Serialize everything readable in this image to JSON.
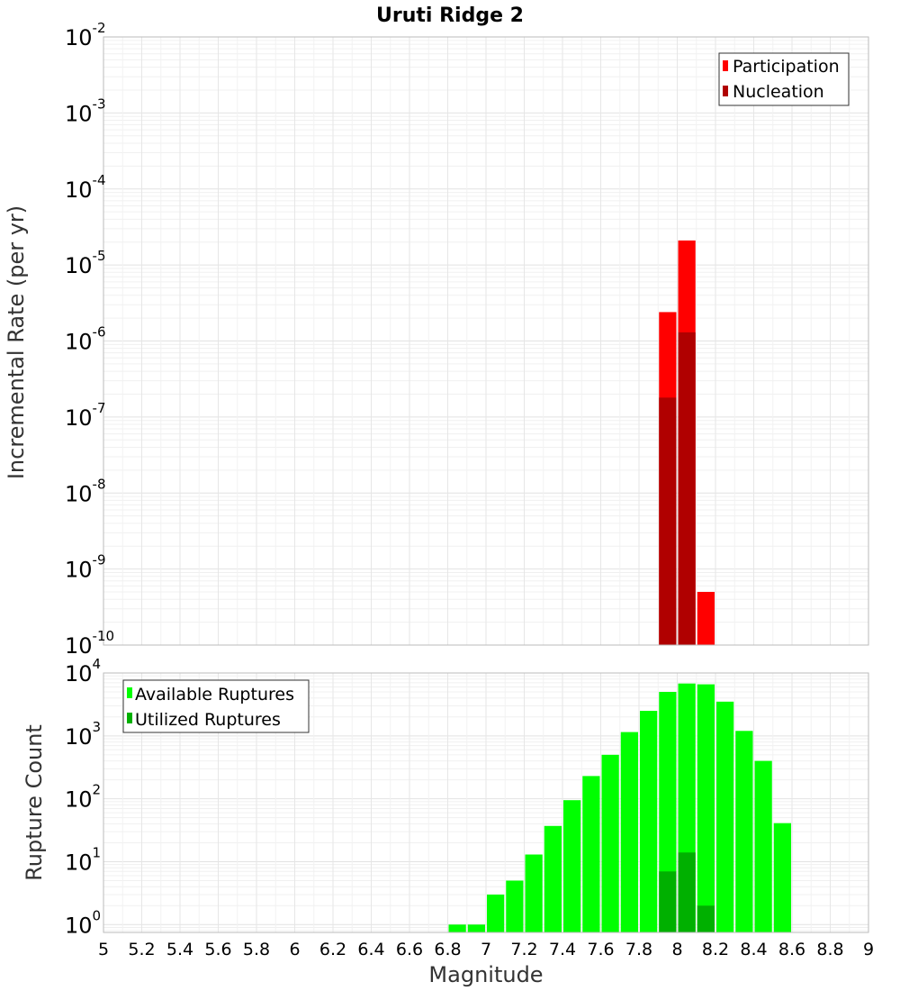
{
  "chart_data": [
    {
      "type": "bar",
      "title": "Uruti Ridge 2",
      "xlabel": "",
      "ylabel": "Incremental Rate (per yr)",
      "yscale": "log",
      "ylim_exp": [
        -10,
        -2
      ],
      "xlim": [
        5,
        9
      ],
      "bin_width": 0.1,
      "grid": true,
      "legend_position": "top-right",
      "y_ticks": [
        {
          "base": "10",
          "exp": "-2"
        },
        {
          "base": "10",
          "exp": "-3"
        },
        {
          "base": "10",
          "exp": "-4"
        },
        {
          "base": "10",
          "exp": "-5"
        },
        {
          "base": "10",
          "exp": "-6"
        },
        {
          "base": "10",
          "exp": "-7"
        },
        {
          "base": "10",
          "exp": "-8"
        },
        {
          "base": "10",
          "exp": "-9"
        },
        {
          "base": "10",
          "exp": "-10"
        }
      ],
      "series": [
        {
          "name": "Participation",
          "color": "#ff0000",
          "points": [
            {
              "x": 7.95,
              "y": 2.4e-06
            },
            {
              "x": 8.05,
              "y": 2.1e-05
            },
            {
              "x": 8.15,
              "y": 5e-10
            }
          ]
        },
        {
          "name": "Nucleation",
          "color": "#b00000",
          "points": [
            {
              "x": 7.95,
              "y": 1.8e-07
            },
            {
              "x": 8.05,
              "y": 1.3e-06
            }
          ]
        }
      ]
    },
    {
      "type": "bar",
      "title": "",
      "xlabel": "Magnitude",
      "ylabel": "Rupture Count",
      "yscale": "log",
      "ylim": [
        0.75,
        10000
      ],
      "xlim": [
        5,
        9
      ],
      "bin_width": 0.1,
      "grid": true,
      "legend_position": "top-left",
      "y_ticks": [
        {
          "base": "10",
          "exp": "4"
        },
        {
          "base": "10",
          "exp": "3"
        },
        {
          "base": "10",
          "exp": "2"
        },
        {
          "base": "10",
          "exp": "1"
        },
        {
          "base": "10",
          "exp": "0"
        }
      ],
      "x_ticks": [
        "5",
        "5.2",
        "5.4",
        "5.6",
        "5.8",
        "6",
        "6.2",
        "6.4",
        "6.6",
        "6.8",
        "7",
        "7.2",
        "7.4",
        "7.6",
        "7.8",
        "8",
        "8.2",
        "8.4",
        "8.6",
        "8.8",
        "9"
      ],
      "series": [
        {
          "name": "Available Ruptures",
          "color": "#00ff00",
          "points": [
            {
              "x": 6.85,
              "y": 1
            },
            {
              "x": 6.95,
              "y": 1
            },
            {
              "x": 7.05,
              "y": 3
            },
            {
              "x": 7.15,
              "y": 5
            },
            {
              "x": 7.25,
              "y": 13
            },
            {
              "x": 7.35,
              "y": 37
            },
            {
              "x": 7.45,
              "y": 95
            },
            {
              "x": 7.55,
              "y": 230
            },
            {
              "x": 7.65,
              "y": 500
            },
            {
              "x": 7.75,
              "y": 1150
            },
            {
              "x": 7.85,
              "y": 2500
            },
            {
              "x": 7.95,
              "y": 5000
            },
            {
              "x": 8.05,
              "y": 6800
            },
            {
              "x": 8.15,
              "y": 6600
            },
            {
              "x": 8.25,
              "y": 3500
            },
            {
              "x": 8.35,
              "y": 1200
            },
            {
              "x": 8.45,
              "y": 400
            },
            {
              "x": 8.55,
              "y": 41
            }
          ]
        },
        {
          "name": "Utilized Ruptures",
          "color": "#00b000",
          "points": [
            {
              "x": 7.95,
              "y": 7
            },
            {
              "x": 8.05,
              "y": 14
            },
            {
              "x": 8.15,
              "y": 2
            }
          ]
        }
      ]
    }
  ]
}
